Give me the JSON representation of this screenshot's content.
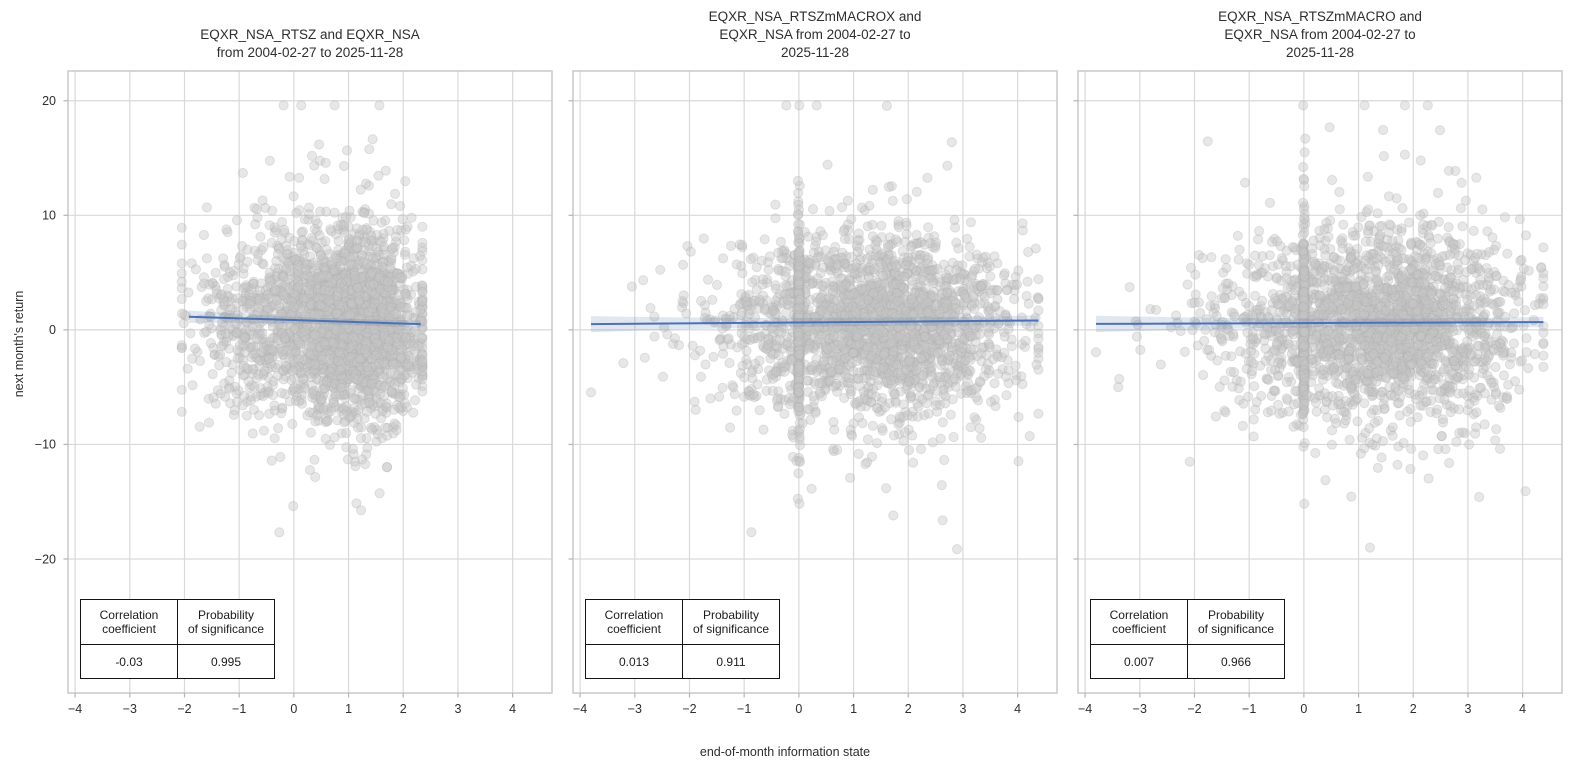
{
  "figure": {
    "xlabel": "end-of-month information state",
    "ylabel": "next month's return",
    "background": "#ffffff",
    "colors": {
      "scatter_point_fill": "#c6c6c6",
      "scatter_point_edge": "#ababab",
      "regression_line": "#4c72b0",
      "confidence_band": "#4c72b0",
      "gridline": "#d9d9d9",
      "spine": "#c8c8c8",
      "tick_mark": "#b5b5b5",
      "text": "#2e2e2e"
    }
  },
  "chart_data": [
    {
      "type": "scatter",
      "title": "EQXR_NSA_RTSZ and EQXR_NSA\nfrom 2004-02-27 to 2025-11-28",
      "xlabel": "end-of-month information state",
      "ylabel": "next month's return",
      "x_ticks": [
        -4,
        -3,
        -2,
        -1,
        0,
        1,
        2,
        3,
        4
      ],
      "y_ticks": [
        20,
        10,
        0,
        -10,
        -20
      ],
      "xlim": [
        -4.13,
        4.72
      ],
      "ylim": [
        -31.7,
        22.6
      ],
      "grid": true,
      "correlation_coefficient": -0.03,
      "probability_of_significance": 0.995,
      "regression": {
        "x_start": -1.92,
        "y_start": 1.15,
        "x_end": 2.32,
        "y_end": 0.5,
        "band_halfwidth": {
          "start": 0.55,
          "mid": 0.15,
          "end": 0.33
        }
      },
      "stats_table": {
        "headers": [
          "Correlation\ncoefficient",
          "Probability\nof significance"
        ],
        "values": [
          "-0.03",
          "0.995"
        ]
      },
      "scatter_model": {
        "n": 2600,
        "seed": 11,
        "x_mix": [
          {
            "w": 0.72,
            "mean": 1.15,
            "sd": 0.62
          },
          {
            "w": 0.28,
            "mean": -0.3,
            "sd": 0.78
          }
        ],
        "zero_stripe_frac": 0,
        "x_clip": [
          -2.05,
          2.35
        ],
        "y_mean": 0.45,
        "y_sd": 3.9,
        "tail_frac": 0.07,
        "tail_scale": 2.1,
        "y_clip": [
          -19.4,
          19.6
        ]
      }
    },
    {
      "type": "scatter",
      "title": "EQXR_NSA_RTSZmMACROX and\nEQXR_NSA from 2004-02-27 to\n2025-11-28",
      "xlabel": "end-of-month information state",
      "ylabel": "next month's return",
      "x_ticks": [
        -4,
        -3,
        -2,
        -1,
        0,
        1,
        2,
        3,
        4
      ],
      "y_ticks": [
        20,
        10,
        0,
        -10,
        -20
      ],
      "xlim": [
        -4.13,
        4.72
      ],
      "ylim": [
        -31.7,
        22.6
      ],
      "grid": true,
      "correlation_coefficient": 0.013,
      "probability_of_significance": 0.911,
      "regression": {
        "x_start": -3.8,
        "y_start": 0.5,
        "x_end": 4.38,
        "y_end": 0.82,
        "band_halfwidth": {
          "start": 0.7,
          "mid": 0.2,
          "end": 0.45
        }
      },
      "stats_table": {
        "headers": [
          "Correlation\ncoefficient",
          "Probability\nof significance"
        ],
        "values": [
          "0.013",
          "0.911"
        ]
      },
      "scatter_model": {
        "n": 2600,
        "seed": 22,
        "x_mix": [
          {
            "w": 0.57,
            "mean": 1.85,
            "sd": 1.05
          },
          {
            "w": 0.3,
            "mean": 0.35,
            "sd": 1.2
          }
        ],
        "zero_stripe_frac": 0.13,
        "x_clip": [
          -3.8,
          4.38
        ],
        "y_mean": 0.45,
        "y_sd": 3.9,
        "tail_frac": 0.07,
        "tail_scale": 2.1,
        "y_clip": [
          -19.4,
          19.6
        ]
      }
    },
    {
      "type": "scatter",
      "title": "EQXR_NSA_RTSZmMACRO and\nEQXR_NSA from 2004-02-27 to\n2025-11-28",
      "xlabel": "end-of-month information state",
      "ylabel": "next month's return",
      "x_ticks": [
        -4,
        -3,
        -2,
        -1,
        0,
        1,
        2,
        3,
        4
      ],
      "y_ticks": [
        20,
        10,
        0,
        -10,
        -20
      ],
      "xlim": [
        -4.13,
        4.72
      ],
      "ylim": [
        -31.7,
        22.6
      ],
      "grid": true,
      "correlation_coefficient": 0.007,
      "probability_of_significance": 0.966,
      "regression": {
        "x_start": -3.8,
        "y_start": 0.52,
        "x_end": 4.38,
        "y_end": 0.68,
        "band_halfwidth": {
          "start": 0.72,
          "mid": 0.2,
          "end": 0.45
        }
      },
      "stats_table": {
        "headers": [
          "Correlation\ncoefficient",
          "Probability\nof significance"
        ],
        "values": [
          "0.007",
          "0.966"
        ]
      },
      "scatter_model": {
        "n": 2600,
        "seed": 33,
        "x_mix": [
          {
            "w": 0.57,
            "mean": 1.9,
            "sd": 1.05
          },
          {
            "w": 0.3,
            "mean": 0.3,
            "sd": 1.2
          }
        ],
        "zero_stripe_frac": 0.13,
        "x_clip": [
          -3.8,
          4.38
        ],
        "y_mean": 0.45,
        "y_sd": 3.9,
        "tail_frac": 0.07,
        "tail_scale": 2.1,
        "y_clip": [
          -19.4,
          19.6
        ]
      }
    }
  ]
}
